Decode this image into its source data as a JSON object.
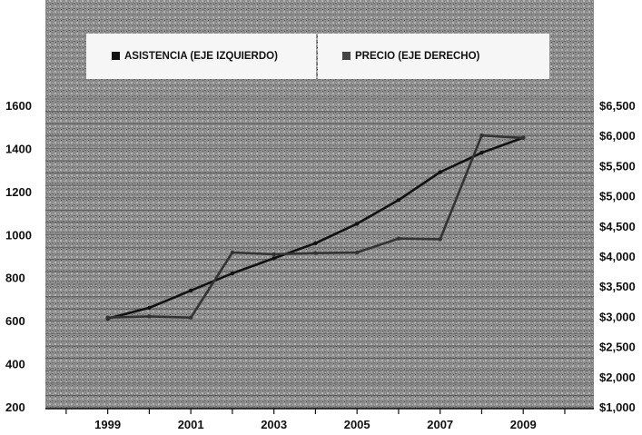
{
  "chart_data": {
    "type": "line",
    "title": "",
    "xlabel": "",
    "ylabel": "",
    "x": [
      1999,
      2000,
      2001,
      2002,
      2003,
      2004,
      2005,
      2006,
      2007,
      2008,
      2009
    ],
    "x_tick_labels": [
      "1999",
      "2001",
      "2003",
      "2005",
      "2007",
      "2009"
    ],
    "y_left_ticks": [
      "1600",
      "1400",
      "1200",
      "1000",
      "800",
      "600",
      "400",
      "200"
    ],
    "y_right_ticks": [
      "$6,500",
      "$6,000",
      "$5,500",
      "$5,000",
      "$4,500",
      "$4,000",
      "$3,500",
      "$3,000",
      "$2,500",
      "$2,000",
      "$1,000"
    ],
    "ylim_left": [
      200,
      1600
    ],
    "ylim_right": [
      1000,
      6500
    ],
    "grid": true,
    "legend_position": "top",
    "series": [
      {
        "name": "ASISTENCIA (EJE IZQUIERDO)",
        "axis": "left",
        "color": "#111111",
        "values": [
          610,
          660,
          740,
          820,
          890,
          960,
          1050,
          1160,
          1290,
          1380,
          1450
        ]
      },
      {
        "name": "PRECIO (EJE DERECHO)",
        "axis": "right",
        "color": "#333333",
        "values": [
          2980,
          3000,
          2980,
          4060,
          4030,
          4050,
          4060,
          4290,
          4280,
          6000,
          5960
        ]
      }
    ]
  }
}
